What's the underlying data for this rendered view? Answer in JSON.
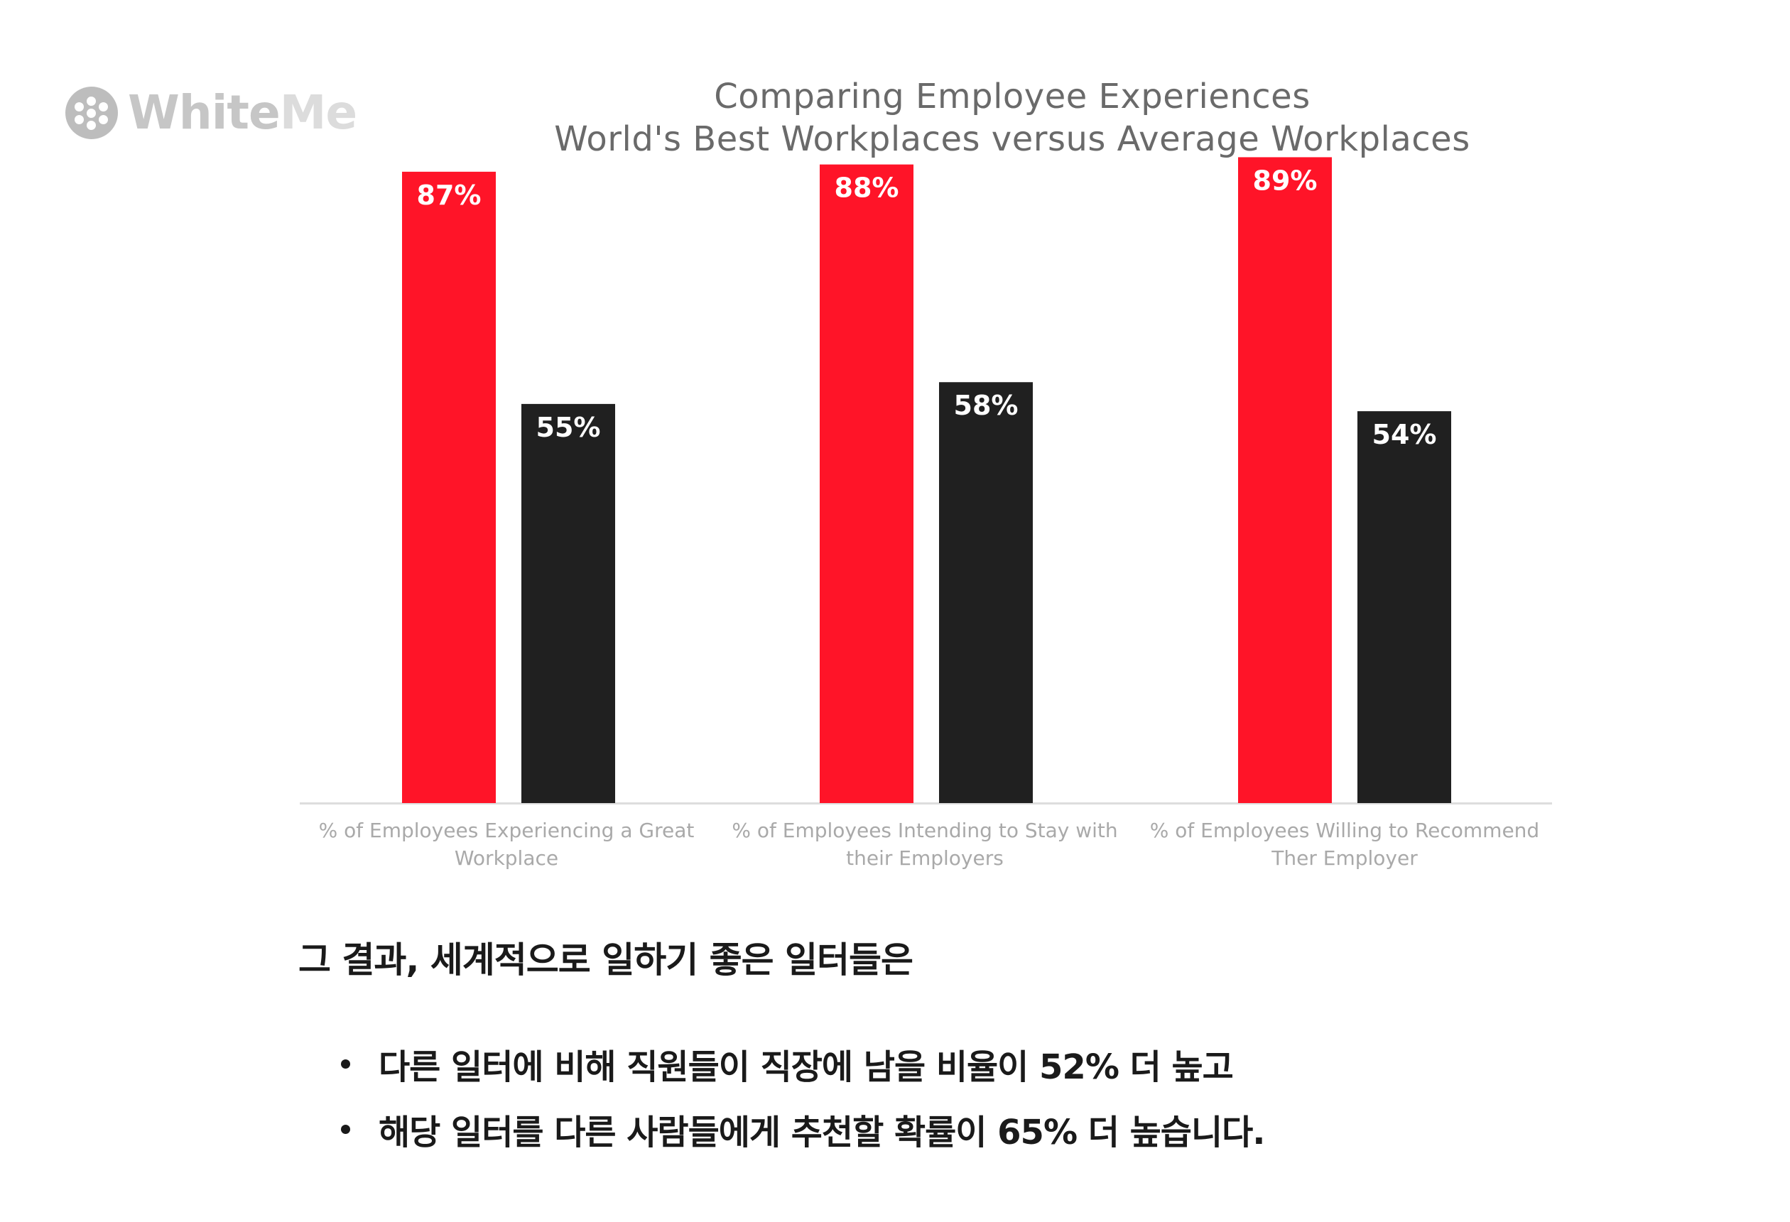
{
  "logo": {
    "text_bold": "White",
    "text_light": "Me"
  },
  "chart_data": {
    "type": "bar",
    "title_line1": "Comparing Employee Experiences",
    "title_line2": "World's Best Workplaces versus Average Workplaces",
    "categories": [
      "% of Employees Experiencing a Great Workplace",
      "% of Employees Intending to Stay with their Employers",
      "% of Employees Willing to Recommend Ther Employer"
    ],
    "category_lines": [
      [
        "% of Employees Experiencing a Great",
        "Workplace"
      ],
      [
        "% of Employees Intending to Stay with",
        "their Employers"
      ],
      [
        "% of Employees Willing to Recommend",
        "Ther Employer"
      ]
    ],
    "series": [
      {
        "values": [
          87,
          88,
          89
        ],
        "labels": [
          "87%",
          "88%",
          "89%"
        ],
        "color": "#ff1428"
      },
      {
        "values": [
          55,
          58,
          54
        ],
        "labels": [
          "55%",
          "58%",
          "54%"
        ],
        "color": "#202020"
      }
    ],
    "ylim": [
      0,
      100
    ],
    "grid": false,
    "legend": "none"
  },
  "text": {
    "lead": "그 결과, 세계적으로 일하기 좋은 일터들은",
    "bullets": [
      "다른 일터에 비해 직원들이 직장에 남을 비율이 52% 더 높고",
      "해당 일터를 다른 사람들에게 추천할 확률이 65% 더 높습니다."
    ]
  }
}
